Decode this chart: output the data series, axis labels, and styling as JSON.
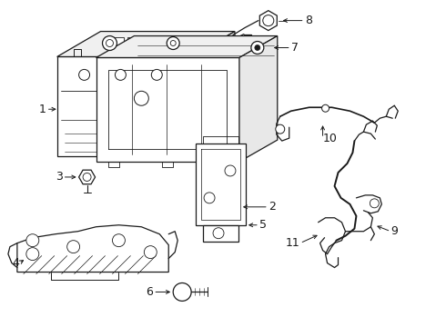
{
  "background_color": "#ffffff",
  "line_color": "#1a1a1a",
  "label_color": "#000000",
  "label_fontsize": 9,
  "fig_width": 4.9,
  "fig_height": 3.6,
  "dpi": 100
}
